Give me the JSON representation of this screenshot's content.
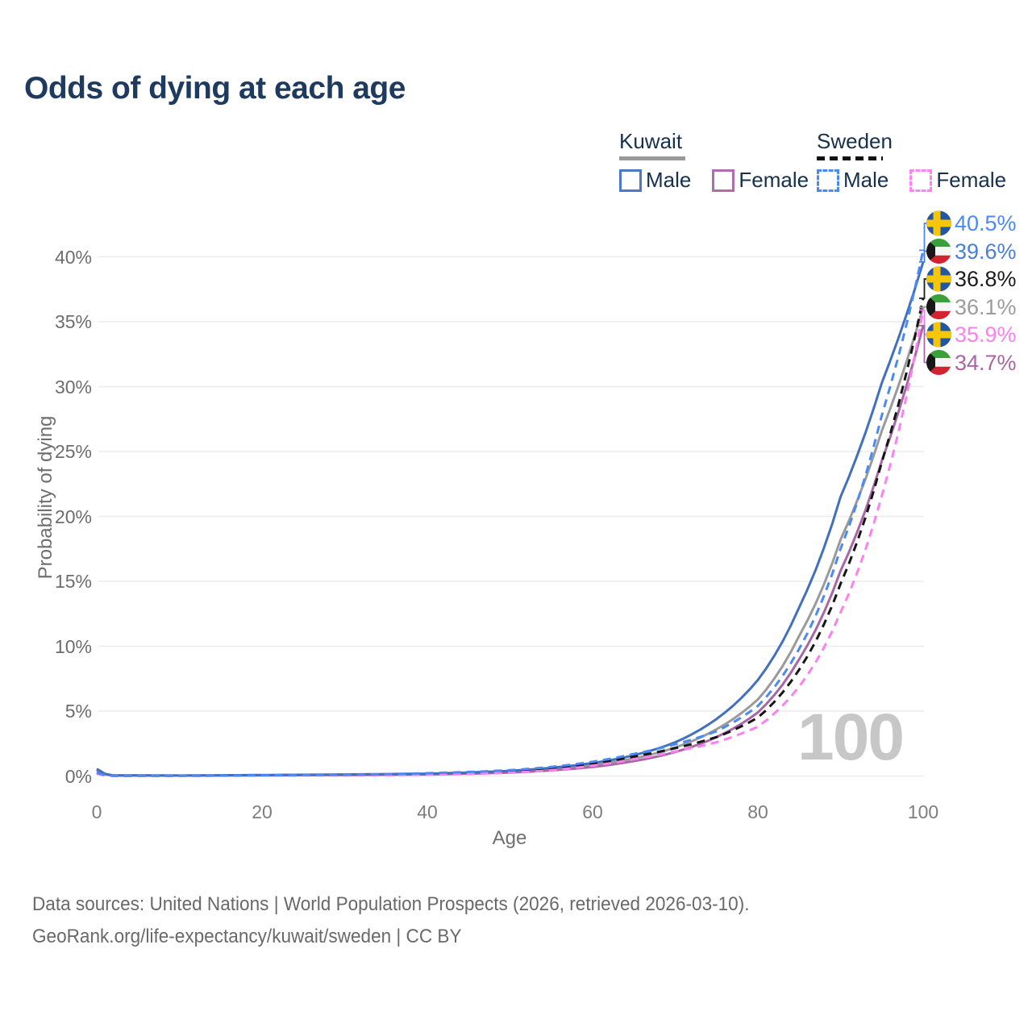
{
  "title": "Odds of dying at each age",
  "watermark_age": "100",
  "legend": {
    "groups": [
      {
        "country": "Kuwait",
        "line_style": "solid",
        "underline_color": "#9a9a9a",
        "items": [
          {
            "label": "Male",
            "color": "#4b79c8",
            "dashed": false
          },
          {
            "label": "Female",
            "color": "#b06cab",
            "dashed": false
          }
        ]
      },
      {
        "country": "Sweden",
        "line_style": "dashed",
        "underline_color": "#111111",
        "items": [
          {
            "label": "Male",
            "color": "#4a8af5",
            "dashed": true
          },
          {
            "label": "Female",
            "color": "#fc84f0",
            "dashed": true
          }
        ]
      }
    ]
  },
  "chart_data": {
    "type": "line",
    "title": "Odds of dying at each age",
    "xlabel": "Age",
    "ylabel": "Probability of dying",
    "x_ticks": [
      0,
      20,
      40,
      60,
      80,
      100
    ],
    "y_ticks": [
      "0%",
      "5%",
      "10%",
      "15%",
      "20%",
      "25%",
      "30%",
      "35%",
      "40%"
    ],
    "y_tick_values": [
      0,
      5,
      10,
      15,
      20,
      25,
      30,
      35,
      40
    ],
    "xlim": [
      0,
      100
    ],
    "ylim": [
      0,
      42
    ],
    "grid": true,
    "legend_position": "top-right",
    "x": [
      0,
      2,
      10,
      20,
      30,
      40,
      50,
      60,
      65,
      70,
      75,
      80,
      85,
      90,
      95,
      100
    ],
    "series": [
      {
        "name": "Kuwait",
        "group": "Kuwait",
        "sex": "both",
        "color": "#9a9a9a",
        "dashed": false,
        "values": [
          0.48,
          0.04,
          0.03,
          0.06,
          0.1,
          0.15,
          0.33,
          0.85,
          1.35,
          2.2,
          3.6,
          5.9,
          10.8,
          18.2,
          26.6,
          36.1
        ],
        "end_value_pct": "36.1%"
      },
      {
        "name": "Kuwait Female",
        "group": "Kuwait",
        "sex": "female",
        "color": "#a867a4",
        "dashed": false,
        "values": [
          0.42,
          0.04,
          0.03,
          0.05,
          0.08,
          0.12,
          0.27,
          0.7,
          1.15,
          1.85,
          3.0,
          4.9,
          9.0,
          15.8,
          24.3,
          34.7
        ],
        "end_value_pct": "34.7%"
      },
      {
        "name": "Kuwait Male",
        "group": "Kuwait",
        "sex": "male",
        "color": "#426fbe",
        "dashed": false,
        "values": [
          0.55,
          0.05,
          0.04,
          0.08,
          0.12,
          0.18,
          0.4,
          1.0,
          1.6,
          2.6,
          4.4,
          7.4,
          13.0,
          21.5,
          30.3,
          39.6
        ],
        "end_value_pct": "39.6%"
      },
      {
        "name": "Sweden",
        "group": "Sweden",
        "sex": "both",
        "color": "#161616",
        "dashed": true,
        "values": [
          0.22,
          0.02,
          0.02,
          0.05,
          0.07,
          0.15,
          0.35,
          0.95,
          1.5,
          2.15,
          3.0,
          4.5,
          8.2,
          14.8,
          24.2,
          36.8
        ],
        "end_value_pct": "36.8%"
      },
      {
        "name": "Sweden Female",
        "group": "Sweden",
        "sex": "female",
        "color": "#fb80f1",
        "dashed": true,
        "values": [
          0.18,
          0.01,
          0.01,
          0.03,
          0.05,
          0.1,
          0.25,
          0.8,
          1.3,
          1.9,
          2.6,
          3.8,
          6.9,
          12.6,
          21.6,
          35.9
        ],
        "end_value_pct": "35.9%"
      },
      {
        "name": "Sweden Male",
        "group": "Sweden",
        "sex": "male",
        "color": "#4a8af5",
        "dashed": true,
        "values": [
          0.25,
          0.02,
          0.02,
          0.06,
          0.09,
          0.22,
          0.45,
          1.1,
          1.7,
          2.45,
          3.45,
          5.4,
          9.8,
          17.5,
          27.8,
          40.5
        ],
        "end_value_pct": "40.5%"
      }
    ],
    "end_labels": [
      {
        "text": "40.5%",
        "value": 40.5,
        "flag": "sweden",
        "series": "Sweden Male",
        "color": "#4a8af5"
      },
      {
        "text": "39.6%",
        "value": 39.6,
        "flag": "kuwait",
        "series": "Kuwait Male",
        "color": "#4a7fd9"
      },
      {
        "text": "36.8%",
        "value": 36.8,
        "flag": "sweden",
        "series": "Sweden",
        "color": "#1c1c1c"
      },
      {
        "text": "36.1%",
        "value": 36.1,
        "flag": "kuwait",
        "series": "Kuwait",
        "color": "#9c9c9c"
      },
      {
        "text": "35.9%",
        "value": 35.9,
        "flag": "sweden",
        "series": "Sweden Female",
        "color": "#fb80f1"
      },
      {
        "text": "34.7%",
        "value": 34.7,
        "flag": "kuwait",
        "series": "Kuwait Female",
        "color": "#a867a4"
      }
    ]
  },
  "footer": {
    "line1": "Data sources: United Nations | World Population Prospects (2026, retrieved 2026-03-10).",
    "line2": "GeoRank.org/life-expectancy/kuwait/sweden | CC BY"
  }
}
